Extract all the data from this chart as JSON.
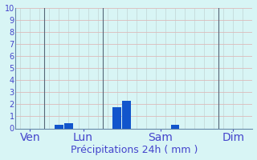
{
  "xlabel": "Précipitations 24h ( mm )",
  "ylim": [
    0,
    10
  ],
  "yticks": [
    0,
    1,
    2,
    3,
    4,
    5,
    6,
    7,
    8,
    9,
    10
  ],
  "background_color": "#cceeff",
  "plot_bg_color": "#d8f5f5",
  "bar_color": "#1155cc",
  "hgrid_color": "#ddbbbb",
  "vgrid_color": "#bbcccc",
  "label_color": "#4444cc",
  "spine_color": "#6688aa",
  "bar_positions": [
    1,
    2,
    3,
    4,
    5,
    6,
    7,
    8,
    9,
    10,
    11,
    12,
    13,
    14,
    15,
    16,
    17,
    18,
    19,
    20,
    21,
    22,
    23,
    24
  ],
  "bar_values": [
    0,
    0,
    0,
    0,
    0.3,
    0.45,
    0,
    0,
    0,
    0,
    1.75,
    2.3,
    0,
    0,
    0,
    0,
    0.3,
    0,
    0,
    0,
    0,
    0,
    0,
    0
  ],
  "day_separators": [
    3.5,
    9.5,
    21.5
  ],
  "xtick_positions": [
    2.0,
    7.5,
    15.5,
    23.0
  ],
  "xtick_labels": [
    "Ven",
    "Lun",
    "Sam",
    "Dim"
  ],
  "xlim": [
    0.5,
    25
  ],
  "n_bars": 24,
  "xlabel_fontsize": 9,
  "tick_labelsize": 7,
  "tick_color": "#4444cc",
  "separator_color": "#556677"
}
